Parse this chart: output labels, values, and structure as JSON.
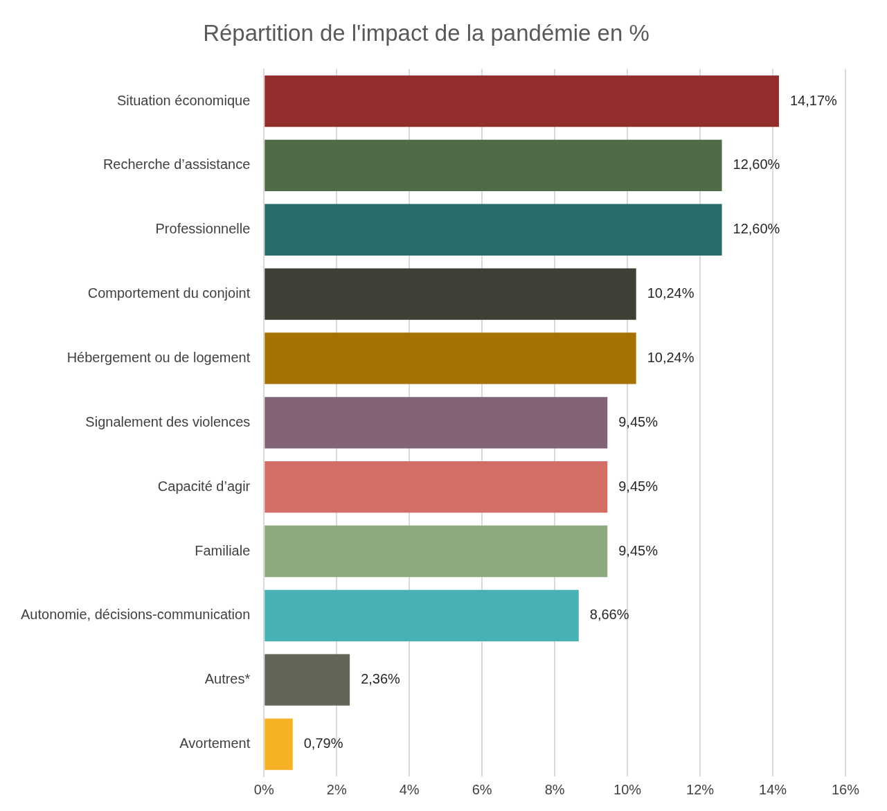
{
  "chart_data": {
    "type": "bar",
    "orientation": "horizontal",
    "title": "Répartition de l'impact de la pandémie en %",
    "categories": [
      "Situation économique",
      "Recherche d’assistance",
      "Professionnelle",
      "Comportement du conjoint",
      "Hébergement ou de logement",
      "Signalement des violences",
      "Capacité d’agir",
      "Familiale",
      "Autonomie, décisions-communication",
      "Autres*",
      "Avortement"
    ],
    "values": [
      14.17,
      12.6,
      12.6,
      10.24,
      10.24,
      9.45,
      9.45,
      9.45,
      8.66,
      2.36,
      0.79
    ],
    "value_labels": [
      "14,17%",
      "12,60%",
      "12,60%",
      "10,24%",
      "10,24%",
      "9,45%",
      "9,45%",
      "9,45%",
      "8,66%",
      "2,36%",
      "0,79%"
    ],
    "colors": [
      "#922f2c",
      "#506b48",
      "#2a6b6c",
      "#3c4035",
      "#a57205",
      "#836476",
      "#d56d67",
      "#8ea97d",
      "#48b1b4",
      "#636656",
      "#f5b225"
    ],
    "xlim": [
      0,
      16
    ],
    "xticks": [
      {
        "value": 0,
        "label": "0%"
      },
      {
        "value": 2,
        "label": "2%"
      },
      {
        "value": 4,
        "label": "4%"
      },
      {
        "value": 6,
        "label": "6%"
      },
      {
        "value": 8,
        "label": "8%"
      },
      {
        "value": 10,
        "label": "10%"
      },
      {
        "value": 12,
        "label": "12%"
      },
      {
        "value": 14,
        "label": "14%"
      },
      {
        "value": 16,
        "label": "16%"
      }
    ],
    "grid": "x",
    "legend": false
  }
}
